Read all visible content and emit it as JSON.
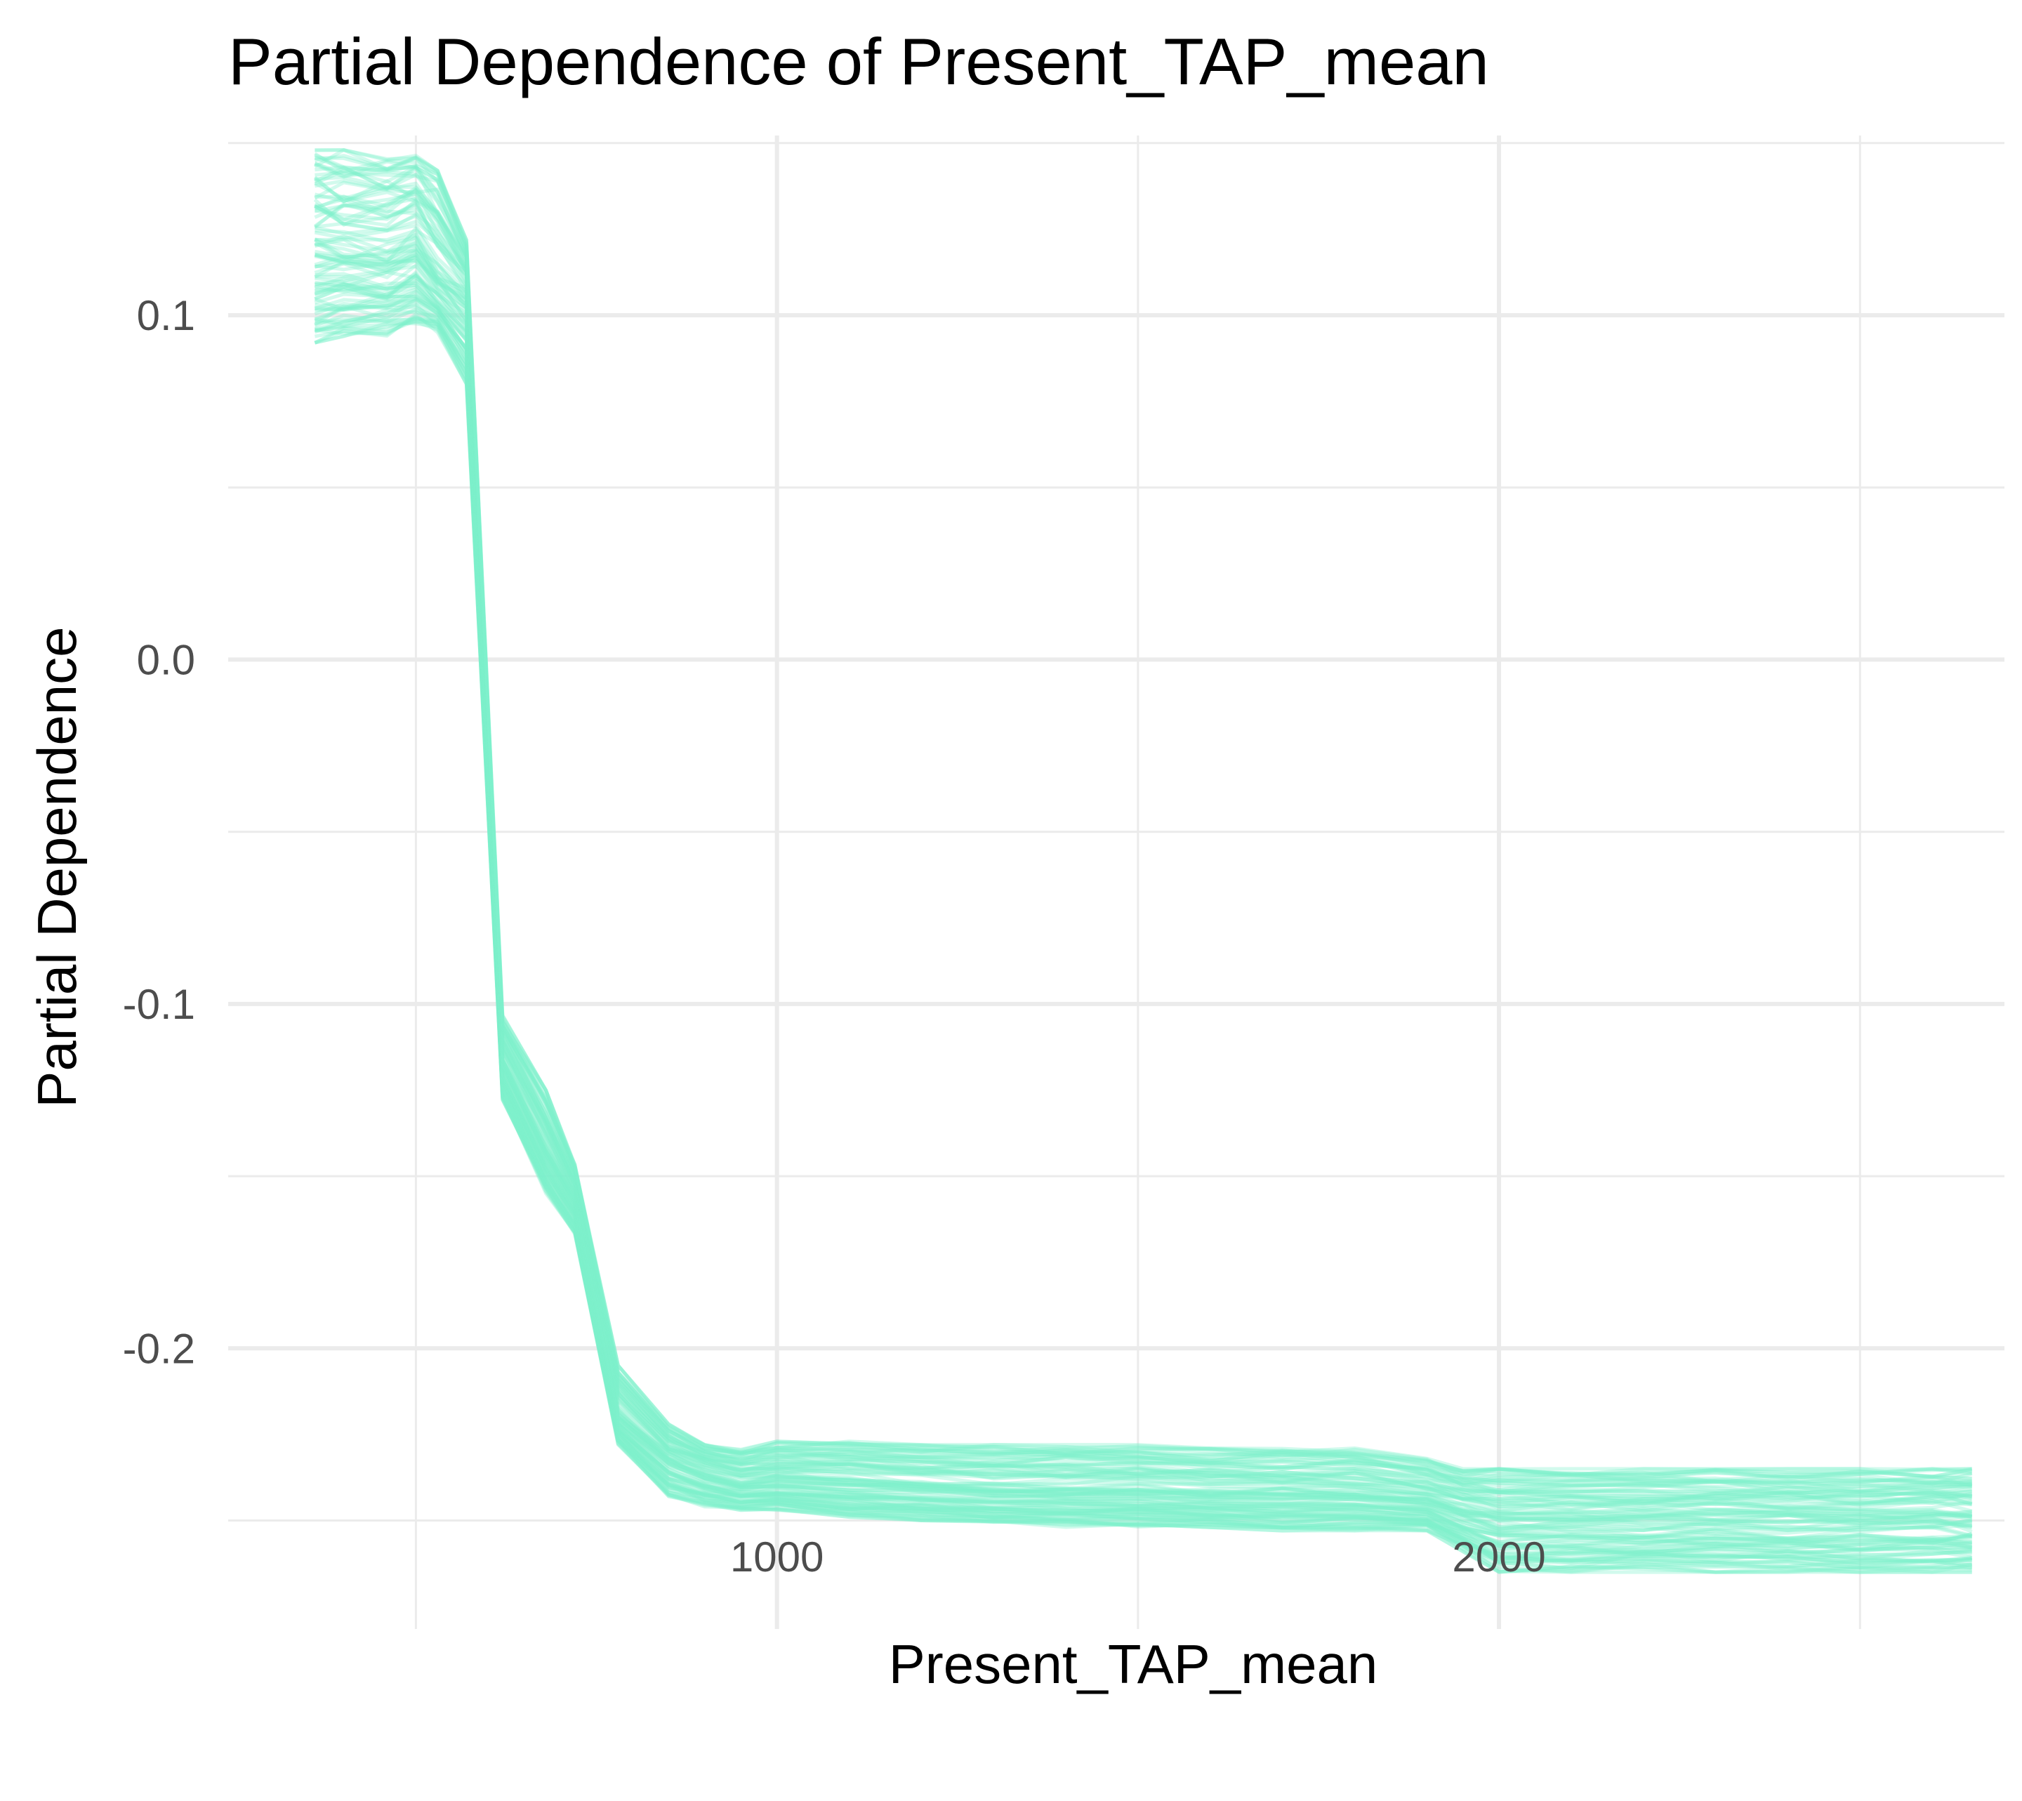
{
  "chart_data": {
    "type": "line",
    "title": "Partial Dependence of Present_TAP_mean",
    "xlabel": "Present_TAP_mean",
    "ylabel": "Partial Dependence",
    "xlim": [
      240,
      2700
    ],
    "ylim": [
      -0.2815,
      0.1522
    ],
    "x_major_ticks": [
      1000,
      2000
    ],
    "x_minor_gridlines": [
      500,
      1500,
      2500
    ],
    "y_major_ticks": [
      0.1,
      0.0,
      -0.1,
      -0.2
    ],
    "y_major_tick_labels": [
      "0.1",
      "0.0",
      "-0.1",
      "-0.2"
    ],
    "y_minor_gridlines": [
      0.15,
      0.05,
      -0.05,
      -0.15,
      -0.25
    ],
    "grid": true,
    "legend": "none",
    "line_color": "#7ef2cc",
    "line_opacity": 0.35,
    "num_lines": 100,
    "mean_curve": {
      "x": [
        360,
        400,
        460,
        500,
        530,
        570,
        620,
        680,
        720,
        780,
        850,
        900,
        950,
        1000,
        1100,
        1200,
        1300,
        1400,
        1500,
        1600,
        1700,
        1800,
        1900,
        1950,
        2000,
        2100,
        2200,
        2300,
        2400,
        2500,
        2600,
        2655
      ],
      "y": [
        0.118,
        0.118,
        0.117,
        0.12,
        0.111,
        0.105,
        -0.117,
        -0.142,
        -0.157,
        -0.22,
        -0.232,
        -0.236,
        -0.239,
        -0.238,
        -0.239,
        -0.24,
        -0.241,
        -0.241,
        -0.241,
        -0.242,
        -0.242,
        -0.242,
        -0.244,
        -0.247,
        -0.249,
        -0.249,
        -0.249,
        -0.249,
        -0.249,
        -0.249,
        -0.249,
        -0.249
      ]
    },
    "band": {
      "x": [
        360,
        400,
        460,
        500,
        530,
        570,
        620,
        680,
        720,
        780,
        850,
        900,
        950,
        1000,
        1100,
        1200,
        1300,
        1400,
        1500,
        1600,
        1700,
        1800,
        1900,
        1950,
        2000,
        2100,
        2200,
        2300,
        2400,
        2500,
        2600,
        2655
      ],
      "upper": [
        0.148,
        0.148,
        0.147,
        0.148,
        0.142,
        0.122,
        -0.103,
        -0.125,
        -0.146,
        -0.205,
        -0.222,
        -0.228,
        -0.229,
        -0.227,
        -0.227,
        -0.228,
        -0.228,
        -0.228,
        -0.228,
        -0.229,
        -0.229,
        -0.229,
        -0.232,
        -0.235,
        -0.235,
        -0.235,
        -0.235,
        -0.235,
        -0.235,
        -0.235,
        -0.235,
        -0.235
      ],
      "lower": [
        0.092,
        0.093,
        0.094,
        0.097,
        0.095,
        0.08,
        -0.128,
        -0.155,
        -0.167,
        -0.228,
        -0.243,
        -0.246,
        -0.247,
        -0.247,
        -0.249,
        -0.25,
        -0.251,
        -0.252,
        -0.252,
        -0.252,
        -0.253,
        -0.253,
        -0.253,
        -0.259,
        -0.265,
        -0.265,
        -0.265,
        -0.265,
        -0.265,
        -0.265,
        -0.265,
        -0.265
      ]
    }
  }
}
